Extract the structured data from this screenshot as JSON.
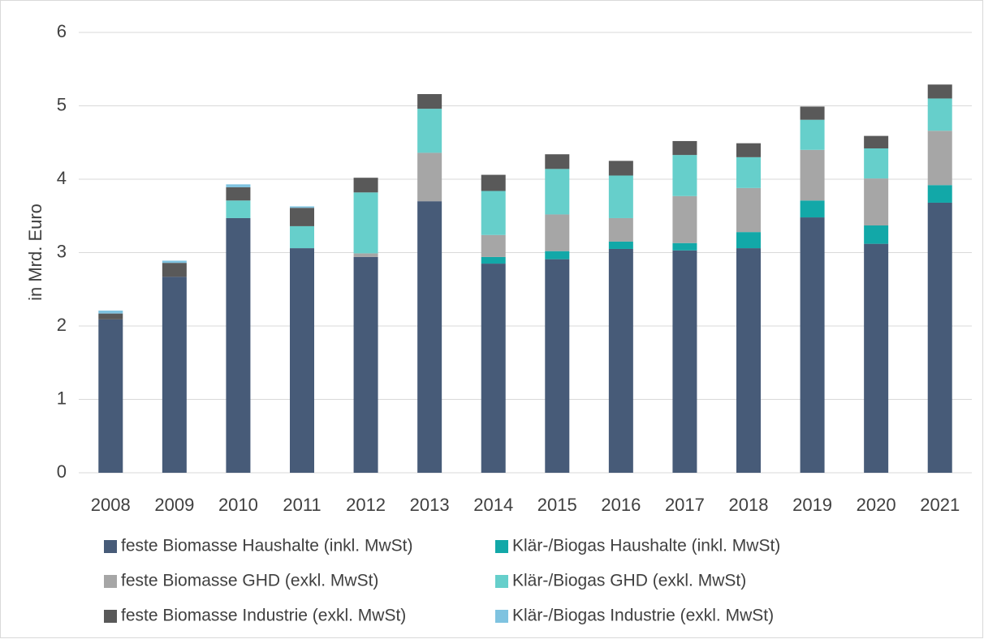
{
  "chart_data": {
    "type": "stacked_bar",
    "y_label": "in Mrd. Euro",
    "categories": [
      "2008",
      "2009",
      "2010",
      "2011",
      "2012",
      "2013",
      "2014",
      "2015",
      "2016",
      "2017",
      "2018",
      "2019",
      "2020",
      "2021"
    ],
    "ylim": [
      0,
      6
    ],
    "yticks": [
      0,
      1,
      2,
      3,
      4,
      5,
      6
    ],
    "grid": true,
    "series": [
      {
        "name": "feste Biomasse Haushalte (inkl. MwSt)",
        "color": "#475b78",
        "values": [
          2.09,
          2.67,
          3.47,
          3.06,
          2.94,
          3.7,
          2.85,
          2.91,
          3.05,
          3.03,
          3.06,
          3.48,
          3.12,
          3.68
        ]
      },
      {
        "name": "Klär-/Biogas Haushalte (inkl. MwSt)",
        "color": "#12a8a8",
        "values": [
          0,
          0,
          0,
          0,
          0,
          0,
          0.09,
          0.11,
          0.1,
          0.1,
          0.22,
          0.23,
          0.25,
          0.24
        ]
      },
      {
        "name": "feste Biomasse GHD (exkl. MwSt)",
        "color": "#a6a6a6",
        "values": [
          0,
          0,
          0,
          0,
          0.05,
          0.66,
          0.3,
          0.5,
          0.32,
          0.64,
          0.6,
          0.69,
          0.64,
          0.74
        ]
      },
      {
        "name": "Klär-/Biogas GHD (exkl. MwSt)",
        "color": "#66cfcb",
        "values": [
          0,
          0,
          0.24,
          0.3,
          0.83,
          0.6,
          0.6,
          0.62,
          0.58,
          0.56,
          0.42,
          0.41,
          0.41,
          0.44
        ]
      },
      {
        "name": "feste Biomasse Industrie (exkl. MwSt)",
        "color": "#595959",
        "values": [
          0.08,
          0.19,
          0.18,
          0.25,
          0.2,
          0.2,
          0.22,
          0.2,
          0.2,
          0.19,
          0.19,
          0.18,
          0.17,
          0.19
        ]
      },
      {
        "name": "Klär-/Biogas Industrie (exkl. MwSt)",
        "color": "#7fc3e0",
        "values": [
          0.04,
          0.03,
          0.04,
          0.02,
          0,
          0,
          0,
          0,
          0,
          0,
          0,
          0,
          0,
          0
        ]
      }
    ]
  }
}
